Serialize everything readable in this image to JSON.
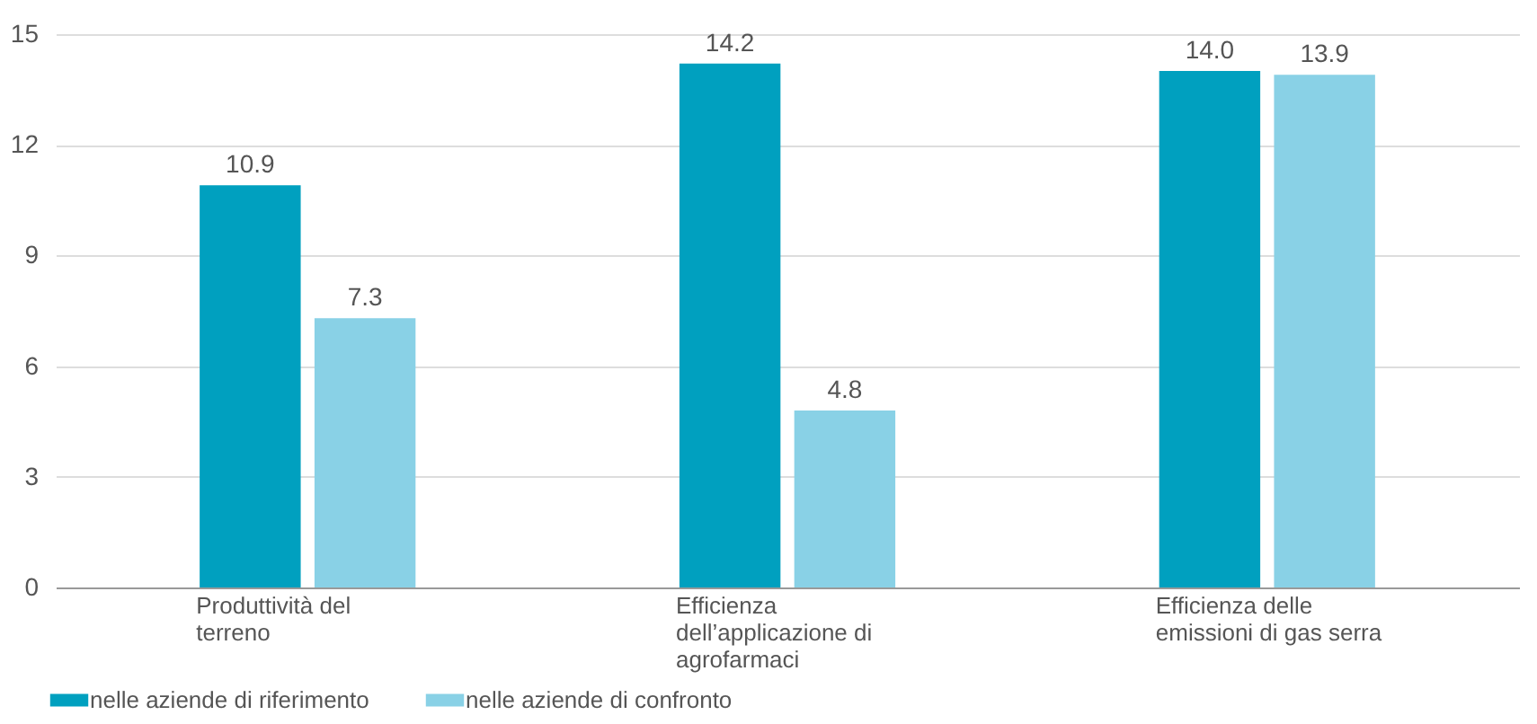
{
  "chart_data": {
    "type": "bar",
    "categories": [
      "Produttività del terreno",
      "Efficienza dell’applicazione di agrofarmaci",
      "Efficienza delle emissioni di gas serra"
    ],
    "series": [
      {
        "name": "nelle aziende di riferimento",
        "color": "#00a0bf",
        "values": [
          10.9,
          14.2,
          14.0
        ],
        "value_labels": [
          "10.9",
          "14.2",
          "14.0"
        ]
      },
      {
        "name": "nelle aziende di confronto",
        "color": "#89d1e6",
        "values": [
          7.3,
          4.8,
          13.9
        ],
        "value_labels": [
          "7.3",
          "4.8",
          "13.9"
        ]
      }
    ],
    "ylim": [
      0,
      15
    ],
    "yticks": [
      0,
      3,
      6,
      9,
      12,
      15
    ],
    "grid": "y",
    "legend": "bottom left"
  }
}
